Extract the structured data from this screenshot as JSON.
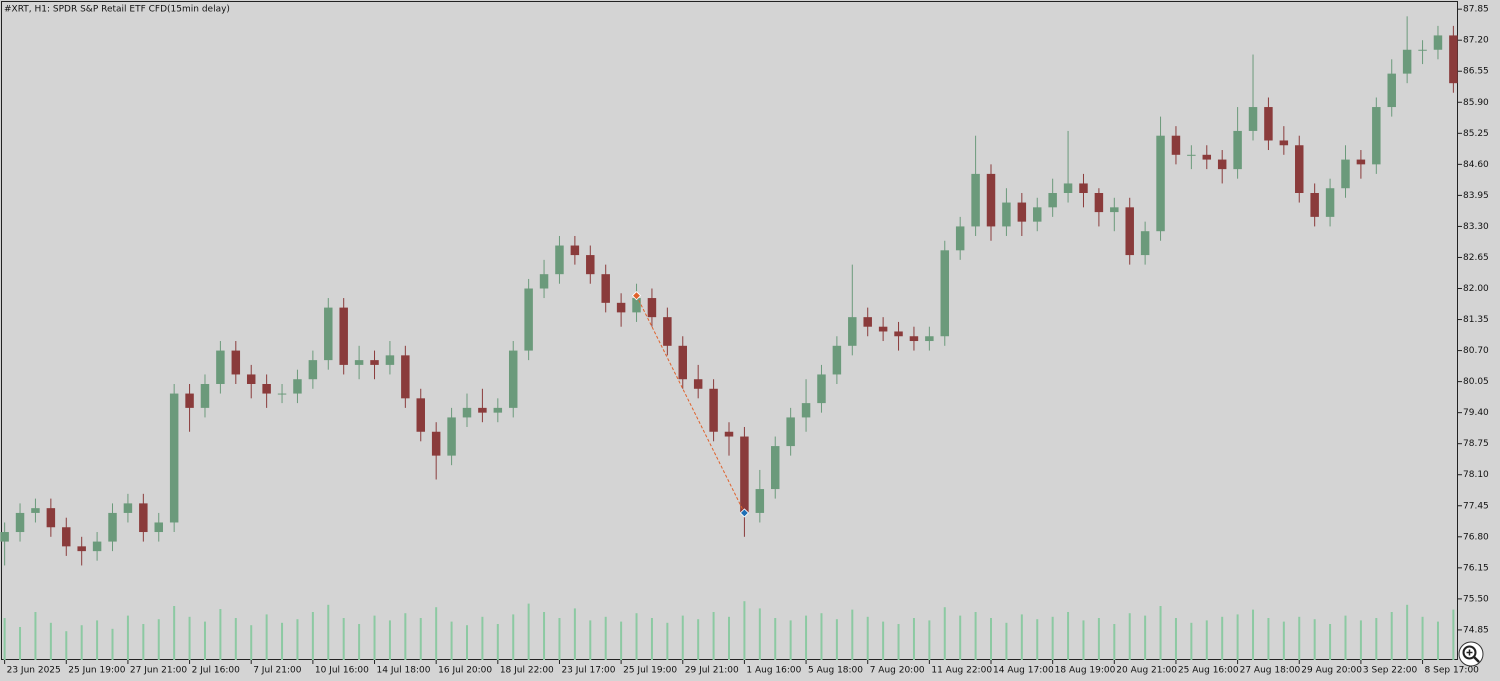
{
  "chart_data": {
    "type": "candlestick",
    "title": "#XRT, H1:  SPDR S&P Retail ETF CFD(15min delay)",
    "open": [
      76.7,
      76.9,
      77.3,
      77.4,
      77.0,
      76.6,
      76.5,
      76.7,
      77.3,
      77.5,
      76.9,
      77.1,
      79.8,
      79.5,
      80.0,
      80.7,
      80.2,
      80.0,
      79.8,
      79.8,
      80.1,
      80.5,
      81.6,
      80.4,
      80.5,
      80.4,
      80.6,
      79.7,
      79.0,
      78.5,
      79.3,
      79.5,
      79.4,
      79.5,
      80.7,
      82.0,
      82.3,
      82.9,
      82.7,
      82.3,
      81.7,
      81.5,
      81.8,
      81.4,
      80.8,
      80.1,
      79.9,
      79.0,
      78.9,
      77.3,
      77.8,
      78.7,
      79.3,
      79.6,
      80.2,
      80.8,
      81.4,
      81.2,
      81.1,
      81.0,
      80.9,
      81.0,
      82.8,
      83.3,
      84.4,
      83.3,
      83.8,
      83.4,
      83.7,
      84.0,
      84.2,
      84.0,
      83.6,
      83.7,
      82.7,
      83.2,
      85.2,
      84.8,
      84.8,
      84.7,
      84.5,
      85.3,
      85.8,
      85.1,
      85.0,
      84.0,
      83.5,
      84.1,
      84.7,
      84.6,
      85.8,
      86.5,
      87.0,
      87.0,
      87.3
    ],
    "high": [
      77.1,
      77.5,
      77.6,
      77.6,
      77.2,
      76.8,
      76.9,
      77.5,
      77.7,
      77.7,
      77.3,
      80.0,
      80.0,
      80.2,
      80.9,
      80.9,
      80.4,
      80.2,
      80.0,
      80.3,
      80.7,
      81.8,
      81.8,
      80.8,
      80.7,
      80.9,
      80.8,
      79.9,
      79.2,
      79.5,
      79.8,
      79.9,
      79.7,
      80.9,
      82.2,
      82.6,
      83.1,
      83.1,
      82.9,
      82.5,
      81.9,
      82.1,
      82.0,
      81.6,
      81.0,
      80.4,
      80.1,
      79.2,
      79.1,
      78.2,
      78.9,
      79.5,
      80.1,
      80.4,
      81.0,
      82.5,
      81.6,
      81.4,
      81.3,
      81.2,
      81.2,
      83.0,
      83.5,
      85.2,
      84.6,
      84.1,
      84.0,
      83.9,
      84.3,
      85.3,
      84.4,
      84.1,
      83.9,
      83.9,
      83.4,
      85.6,
      85.4,
      85.0,
      85.0,
      84.9,
      85.8,
      86.9,
      86.0,
      85.4,
      85.2,
      84.2,
      84.3,
      85.0,
      84.9,
      86.0,
      86.8,
      87.7,
      87.2,
      87.5,
      87.5
    ],
    "low": [
      76.2,
      76.7,
      77.1,
      76.8,
      76.4,
      76.2,
      76.3,
      76.5,
      77.1,
      76.7,
      76.7,
      76.9,
      79.0,
      79.3,
      79.8,
      80.0,
      79.7,
      79.5,
      79.6,
      79.6,
      79.9,
      80.3,
      80.2,
      80.1,
      80.1,
      80.2,
      79.5,
      78.8,
      78.0,
      78.3,
      79.1,
      79.2,
      79.2,
      79.3,
      80.5,
      81.8,
      82.1,
      82.5,
      82.1,
      81.5,
      81.2,
      81.3,
      81.2,
      80.6,
      79.9,
      79.7,
      78.8,
      78.5,
      76.8,
      77.1,
      77.6,
      78.5,
      79.0,
      79.4,
      80.0,
      80.6,
      81.0,
      80.9,
      80.7,
      80.7,
      80.7,
      80.8,
      82.6,
      83.1,
      83.0,
      83.1,
      83.1,
      83.2,
      83.5,
      83.8,
      83.7,
      83.3,
      83.2,
      82.5,
      82.5,
      83.0,
      84.6,
      84.5,
      84.5,
      84.2,
      84.3,
      85.1,
      84.9,
      84.8,
      83.8,
      83.3,
      83.3,
      83.9,
      84.3,
      84.4,
      85.6,
      86.3,
      86.7,
      86.8,
      86.1
    ],
    "close": [
      76.9,
      77.3,
      77.4,
      77.0,
      76.6,
      76.5,
      76.7,
      77.3,
      77.5,
      76.9,
      77.1,
      79.8,
      79.5,
      80.0,
      80.7,
      80.2,
      80.0,
      79.8,
      79.8,
      80.1,
      80.5,
      81.6,
      80.4,
      80.5,
      80.4,
      80.6,
      79.7,
      79.0,
      78.5,
      79.3,
      79.5,
      79.4,
      79.5,
      80.7,
      82.0,
      82.3,
      82.9,
      82.7,
      82.3,
      81.7,
      81.5,
      81.8,
      81.4,
      80.8,
      80.1,
      79.9,
      79.0,
      78.9,
      77.3,
      77.8,
      78.7,
      79.3,
      79.6,
      80.2,
      80.8,
      81.4,
      81.2,
      81.1,
      81.0,
      80.9,
      81.0,
      82.8,
      83.3,
      84.4,
      83.3,
      83.8,
      83.4,
      83.7,
      84.0,
      84.2,
      84.0,
      83.6,
      83.7,
      82.7,
      83.2,
      85.2,
      84.8,
      84.8,
      84.7,
      84.5,
      85.3,
      85.8,
      85.1,
      85.0,
      84.0,
      83.5,
      84.1,
      84.7,
      84.6,
      85.8,
      86.5,
      87.0,
      87.0,
      87.3,
      86.3
    ],
    "volume": [
      70,
      55,
      80,
      62,
      48,
      58,
      66,
      52,
      74,
      60,
      68,
      90,
      72,
      64,
      85,
      70,
      58,
      76,
      62,
      68,
      80,
      92,
      70,
      60,
      74,
      66,
      78,
      70,
      88,
      64,
      58,
      72,
      60,
      76,
      94,
      80,
      70,
      86,
      66,
      72,
      64,
      78,
      70,
      62,
      74,
      68,
      80,
      72,
      98,
      86,
      70,
      66,
      74,
      78,
      68,
      84,
      72,
      64,
      60,
      70,
      66,
      88,
      74,
      80,
      70,
      62,
      76,
      68,
      72,
      80,
      66,
      70,
      60,
      78,
      74,
      90,
      70,
      62,
      66,
      72,
      76,
      84,
      70,
      64,
      72,
      68,
      60,
      74,
      66,
      70,
      80,
      92,
      72,
      64,
      84
    ],
    "trade": {
      "x": [
        41,
        48
      ],
      "values": [
        81.85,
        77.3
      ]
    },
    "up_color": "#6b9a7b",
    "down_color": "#8a3b3b",
    "volume_color": "#8cc9a2",
    "trade_color": "#e0622c",
    "xlim": [
      -0.3,
      94.3
    ],
    "ylim": [
      74.22,
      88.0
    ],
    "yticks": [
      87.85,
      {
        "value": 87.2,
        "label": "87.20"
      },
      86.55,
      {
        "value": 85.9,
        "label": "85.90"
      },
      85.25,
      {
        "value": 84.6,
        "label": "84.60"
      },
      83.95,
      {
        "value": 83.3,
        "label": "83.30"
      },
      82.65,
      {
        "value": 82.0,
        "label": "82.00"
      },
      81.35,
      {
        "value": 80.7,
        "label": "80.70"
      },
      80.05,
      {
        "value": 79.4,
        "label": "79.40"
      },
      78.75,
      {
        "value": 78.1,
        "label": "78.10"
      },
      77.45,
      {
        "value": 76.8,
        "label": "76.80"
      },
      76.15,
      {
        "value": 75.5,
        "label": "75.50"
      },
      74.85
    ],
    "xticks": [
      {
        "value": 0,
        "label": "23 Jun 2025"
      },
      {
        "value": 4,
        "label": "25 Jun 19:00"
      },
      {
        "value": 8,
        "label": "27 Jun 21:00"
      },
      {
        "value": 12,
        "label": "2 Jul 16:00"
      },
      {
        "value": 16,
        "label": "7 Jul 21:00"
      },
      {
        "value": 20,
        "label": "10 Jul 16:00"
      },
      {
        "value": 24,
        "label": "14 Jul 18:00"
      },
      {
        "value": 28,
        "label": "16 Jul 20:00"
      },
      {
        "value": 32,
        "label": "18 Jul 22:00"
      },
      {
        "value": 36,
        "label": "23 Jul 17:00"
      },
      {
        "value": 40,
        "label": "25 Jul 19:00"
      },
      {
        "value": 44,
        "label": "29 Jul 21:00"
      },
      {
        "value": 48,
        "label": "1 Aug 16:00"
      },
      {
        "value": 52,
        "label": "5 Aug 18:00"
      },
      {
        "value": 56,
        "label": "7 Aug 20:00"
      },
      {
        "value": 60,
        "label": "11 Aug 22:00"
      },
      {
        "value": 64,
        "label": "14 Aug 17:00"
      },
      {
        "value": 68,
        "label": "18 Aug 19:00"
      },
      {
        "value": 72,
        "label": "20 Aug 21:00"
      },
      {
        "value": 76,
        "label": "25 Aug 16:00"
      },
      {
        "value": 80,
        "label": "27 Aug 18:00"
      },
      {
        "value": 84,
        "label": "29 Aug 20:00"
      },
      {
        "value": 88,
        "label": "3 Sep 22:00"
      },
      {
        "value": 92,
        "label": "8 Sep 17:00"
      }
    ]
  }
}
